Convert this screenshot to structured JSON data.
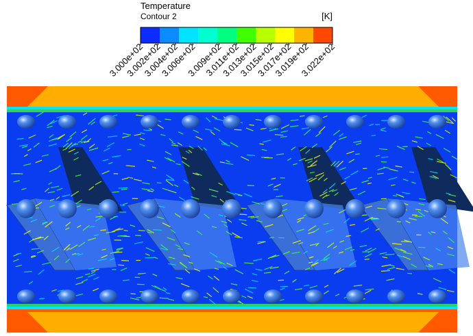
{
  "legend": {
    "title": "Temperature",
    "subtitle": "Contour 2",
    "unit": "[K]",
    "colors": [
      "#0a2cff",
      "#0a8cff",
      "#00e4ff",
      "#00ffd0",
      "#00ff80",
      "#40ff00",
      "#b8ff00",
      "#ffff00",
      "#ffb400",
      "#ff4800"
    ],
    "ticks": [
      {
        "value": 300.0,
        "label": "3.000e+02"
      },
      {
        "value": 300.2,
        "label": "3.002e+02"
      },
      {
        "value": 300.4,
        "label": "3.004e+02"
      },
      {
        "value": 300.6,
        "label": "3.006e+02"
      },
      {
        "value": 300.9,
        "label": "3.009e+02"
      },
      {
        "value": 301.1,
        "label": "3.011e+02"
      },
      {
        "value": 301.3,
        "label": "3.013e+02"
      },
      {
        "value": 301.5,
        "label": "3.015e+02"
      },
      {
        "value": 301.7,
        "label": "3.017e+02"
      },
      {
        "value": 301.9,
        "label": "3.019e+02"
      },
      {
        "value": 302.2,
        "label": "3.022e+02"
      }
    ]
  }
}
